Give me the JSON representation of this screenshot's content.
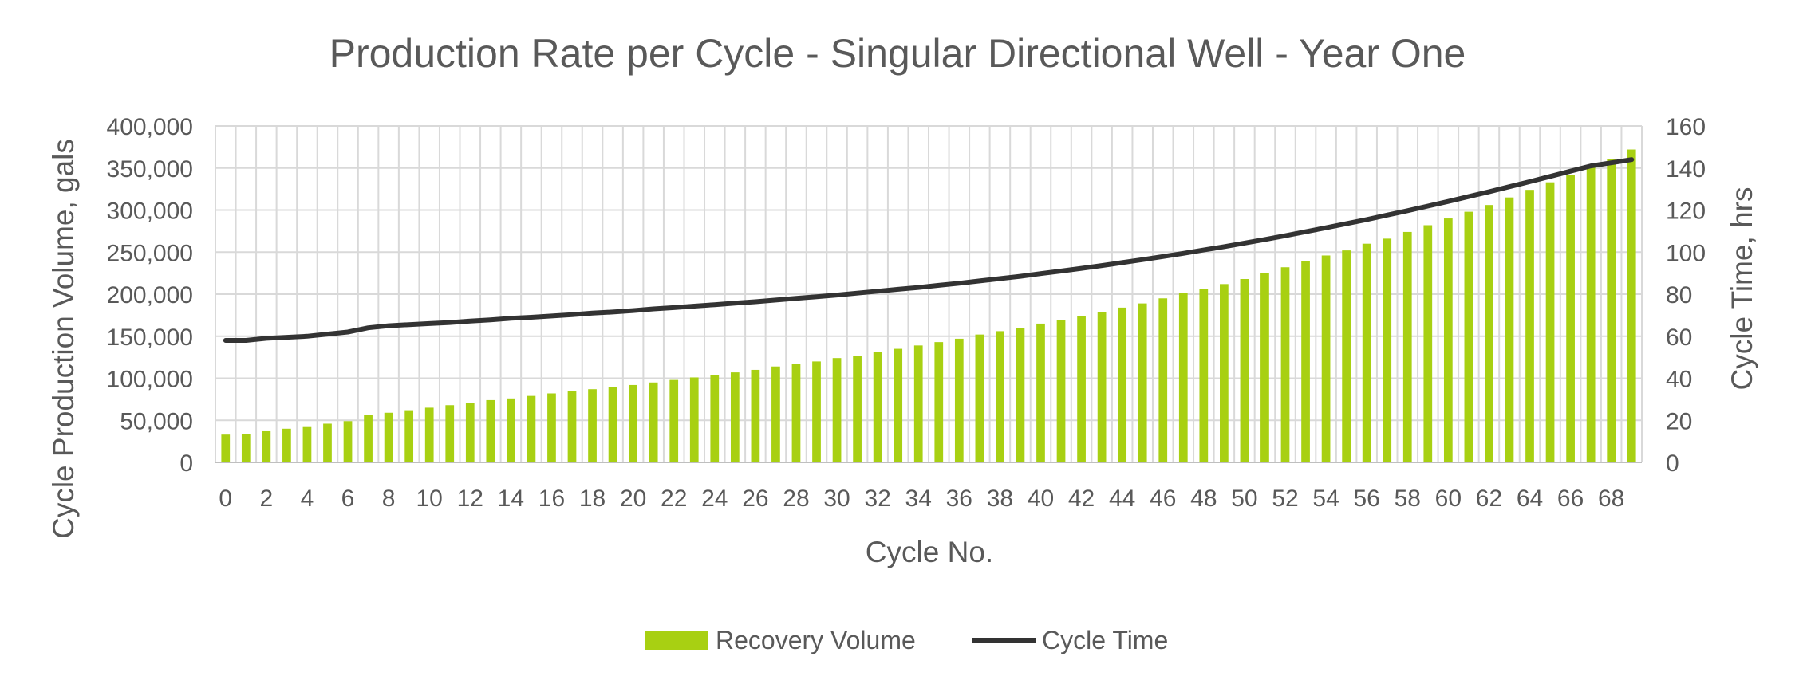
{
  "chart_data": {
    "type": "bar+line",
    "title": "Production Rate per Cycle - Singular Directional Well - Year One",
    "xlabel": "Cycle No.",
    "ylabel_left": "Cycle Production Volume, gals",
    "ylabel_right": "Cycle Time, hrs",
    "ylim_left": [
      0,
      400000
    ],
    "ylim_right": [
      0,
      160
    ],
    "yticks_left": [
      "0",
      "50,000",
      "100,000",
      "150,000",
      "200,000",
      "250,000",
      "300,000",
      "350,000",
      "400,000"
    ],
    "yticks_right": [
      "0",
      "20",
      "40",
      "60",
      "80",
      "100",
      "120",
      "140",
      "160"
    ],
    "x_tick_step": 2,
    "grid": true,
    "legend_position": "bottom",
    "x": [
      0,
      1,
      2,
      3,
      4,
      5,
      6,
      7,
      8,
      9,
      10,
      11,
      12,
      13,
      14,
      15,
      16,
      17,
      18,
      19,
      20,
      21,
      22,
      23,
      24,
      25,
      26,
      27,
      28,
      29,
      30,
      31,
      32,
      33,
      34,
      35,
      36,
      37,
      38,
      39,
      40,
      41,
      42,
      43,
      44,
      45,
      46,
      47,
      48,
      49,
      50,
      51,
      52,
      53,
      54,
      55,
      56,
      57,
      58,
      59,
      60,
      61,
      62,
      63,
      64,
      65,
      66,
      67,
      68,
      69
    ],
    "series": [
      {
        "name": "Recovery Volume",
        "type": "bar",
        "axis": "left",
        "color": "#a8d012",
        "values": [
          33000,
          34000,
          37000,
          40000,
          42000,
          46000,
          49000,
          56000,
          59000,
          62000,
          65000,
          68000,
          71000,
          74000,
          76000,
          79000,
          82000,
          85000,
          87000,
          90000,
          92000,
          95000,
          98000,
          101000,
          104000,
          107000,
          110000,
          114000,
          117000,
          120000,
          124000,
          127000,
          131000,
          135000,
          139000,
          143000,
          147000,
          152000,
          156000,
          160000,
          165000,
          169000,
          174000,
          179000,
          184000,
          189000,
          195000,
          201000,
          206000,
          212000,
          218000,
          225000,
          232000,
          239000,
          246000,
          252000,
          260000,
          266000,
          274000,
          282000,
          290000,
          298000,
          306000,
          315000,
          324000,
          333000,
          342000,
          351000,
          361000,
          372000
        ]
      },
      {
        "name": "Cycle Time",
        "type": "line",
        "axis": "right",
        "color": "#333333",
        "values": [
          58,
          58,
          59,
          59.5,
          60,
          61,
          62,
          64,
          65,
          65.5,
          66,
          66.5,
          67.2,
          67.8,
          68.5,
          69,
          69.6,
          70.2,
          71,
          71.5,
          72.2,
          73,
          73.6,
          74.3,
          75,
          75.7,
          76.4,
          77.2,
          78,
          78.8,
          79.6,
          80.5,
          81.4,
          82.3,
          83.2,
          84.2,
          85.2,
          86.3,
          87.4,
          88.5,
          89.8,
          91,
          92.3,
          93.6,
          95,
          96.4,
          97.9,
          99.4,
          101,
          102.6,
          104.3,
          106,
          107.8,
          109.7,
          111.6,
          113.5,
          115.5,
          117.6,
          119.7,
          121.9,
          124.1,
          126.4,
          128.7,
          131.1,
          133.5,
          136,
          138.5,
          141,
          142.5,
          144
        ]
      }
    ]
  }
}
